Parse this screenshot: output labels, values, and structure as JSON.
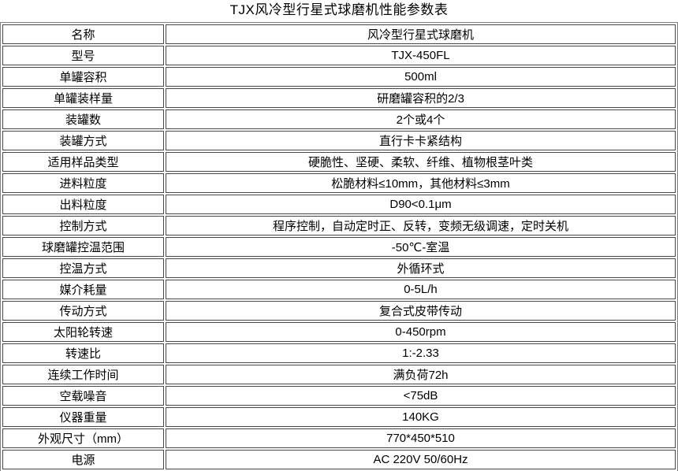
{
  "page_title": "TJX风冷型行星式球磨机性能参数表",
  "table": {
    "rows": [
      {
        "param": "名称",
        "value": "风冷型行星式球磨机"
      },
      {
        "param": "型号",
        "value": "TJX-450FL"
      },
      {
        "param": "单罐容积",
        "value": "500ml"
      },
      {
        "param": "单罐装样量",
        "value": "研磨罐容积的2/3"
      },
      {
        "param": "装罐数",
        "value": "2个或4个"
      },
      {
        "param": "装罐方式",
        "value": "直行卡卡紧结构"
      },
      {
        "param": "适用样品类型",
        "value": "硬脆性、坚硬、柔软、纤维、植物根茎叶类"
      },
      {
        "param": "进料粒度",
        "value": "松脆材料≤10mm，其他材料≤3mm"
      },
      {
        "param": "出料粒度",
        "value": "D90<0.1μm"
      },
      {
        "param": "控制方式",
        "value": "程序控制，自动定时正、反转，变频无级调速，定时关机"
      },
      {
        "param": "球磨罐控温范围",
        "value": "-50℃-室温"
      },
      {
        "param": "控温方式",
        "value": "外循环式"
      },
      {
        "param": "媒介耗量",
        "value": "0-5L/h"
      },
      {
        "param": "传动方式",
        "value": "复合式皮带传动"
      },
      {
        "param": "太阳轮转速",
        "value": "0-450rpm"
      },
      {
        "param": "转速比",
        "value": "1:-2.33"
      },
      {
        "param": "连续工作时间",
        "value": "满负荷72h"
      },
      {
        "param": "空载噪音",
        "value": "<75dB"
      },
      {
        "param": "仪器重量",
        "value": "140KG"
      },
      {
        "param": "外观尺寸（mm）",
        "value": "770*450*510"
      },
      {
        "param": "电源",
        "value": "AC 220V 50/60Hz"
      }
    ]
  },
  "colors": {
    "background": "#ffffff",
    "text": "#000000",
    "table_outer_border": "#808080",
    "cell_border": "#474747"
  }
}
